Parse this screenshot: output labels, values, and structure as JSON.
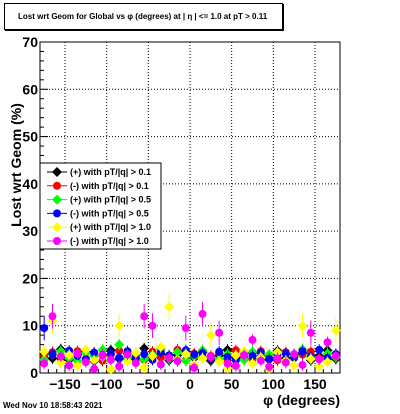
{
  "title": "Lost wrt Geom for Global vs φ (degrees) at |  η | <= 1.0 at pT > 0.11",
  "footer": {
    "timestamp": "Wed Nov 10 18:58:43 2021"
  },
  "chart_data": {
    "type": "scatter",
    "title": "Lost wrt Geom for Global vs φ (degrees) at |  η | <= 1.0 at pT > 0.11",
    "xlabel": "φ (degrees)",
    "ylabel": "Lost wrt Geom (%)",
    "xlim": [
      -180,
      180
    ],
    "ylim": [
      0,
      70
    ],
    "xticks": [
      -150,
      -100,
      -50,
      0,
      50,
      100,
      150
    ],
    "yticks": [
      0,
      10,
      20,
      30,
      40,
      50,
      60,
      70
    ],
    "grid": true,
    "legend_position": "middle-left",
    "series": [
      {
        "name": "(+) with pT/|q| > 0.1",
        "color": "#000000",
        "marker": "diamond",
        "x": [
          -175,
          -165,
          -155,
          -145,
          -135,
          -125,
          -115,
          -105,
          -95,
          -85,
          -75,
          -65,
          -55,
          -45,
          -35,
          -25,
          -15,
          -5,
          5,
          15,
          25,
          35,
          45,
          55,
          65,
          75,
          85,
          95,
          105,
          115,
          125,
          135,
          145,
          155,
          165,
          175
        ],
        "y": [
          4.2,
          3.1,
          5.0,
          2.8,
          3.9,
          4.5,
          2.5,
          3.6,
          4.8,
          3.0,
          4.1,
          2.9,
          5.2,
          3.4,
          4.0,
          2.7,
          3.8,
          4.6,
          3.2,
          4.4,
          2.6,
          3.7,
          4.9,
          3.3,
          2.9,
          4.3,
          3.5,
          2.8,
          4.7,
          3.1,
          3.9,
          4.2,
          2.7,
          3.6,
          4.8,
          3.0
        ]
      },
      {
        "name": "(-) with pT/|q| > 0.1",
        "color": "#ff0000",
        "marker": "circle",
        "x": [
          -175,
          -165,
          -155,
          -145,
          -135,
          -125,
          -115,
          -105,
          -95,
          -85,
          -75,
          -65,
          -55,
          -45,
          -35,
          -25,
          -15,
          -5,
          5,
          15,
          25,
          35,
          45,
          55,
          65,
          75,
          85,
          95,
          105,
          115,
          125,
          135,
          145,
          155,
          165,
          175
        ],
        "y": [
          3.5,
          4.4,
          2.9,
          3.8,
          4.6,
          3.0,
          4.2,
          2.6,
          3.9,
          4.7,
          3.2,
          4.0,
          2.8,
          4.5,
          3.3,
          3.7,
          4.9,
          2.7,
          4.1,
          3.4,
          3.6,
          4.3,
          2.9,
          4.8,
          3.5,
          3.0,
          4.6,
          3.8,
          2.7,
          4.4,
          3.2,
          3.9,
          4.5,
          3.1,
          2.8,
          4.0
        ]
      },
      {
        "name": "(+) with pT/|q| > 0.5",
        "color": "#00ff00",
        "marker": "diamond",
        "x": [
          -175,
          -165,
          -155,
          -145,
          -135,
          -125,
          -115,
          -105,
          -95,
          -85,
          -75,
          -65,
          -55,
          -45,
          -35,
          -25,
          -15,
          -5,
          5,
          15,
          25,
          35,
          45,
          55,
          65,
          75,
          85,
          95,
          105,
          115,
          125,
          135,
          145,
          155,
          165,
          175
        ],
        "y": [
          2.8,
          3.9,
          4.6,
          3.1,
          2.5,
          4.2,
          3.6,
          4.9,
          2.7,
          6.0,
          3.3,
          4.1,
          2.9,
          3.8,
          5.1,
          3.0,
          4.4,
          2.6,
          3.5,
          4.8,
          3.2,
          2.9,
          4.0,
          3.7,
          2.8,
          4.5,
          3.1,
          3.9,
          4.3,
          2.7,
          3.6,
          5.0,
          3.4,
          2.9,
          4.1,
          3.3
        ]
      },
      {
        "name": "(-) with pT/|q| > 0.5",
        "color": "#0000ff",
        "marker": "circle",
        "x": [
          -175,
          -165,
          -155,
          -145,
          -135,
          -125,
          -115,
          -105,
          -95,
          -85,
          -75,
          -65,
          -55,
          -45,
          -35,
          -25,
          -15,
          -5,
          5,
          15,
          25,
          35,
          45,
          55,
          65,
          75,
          85,
          95,
          105,
          115,
          125,
          135,
          145,
          155,
          165,
          175
        ],
        "y": [
          9.5,
          4.0,
          3.3,
          4.7,
          3.6,
          2.9,
          4.3,
          3.8,
          4.1,
          3.2,
          4.6,
          3.5,
          4.0,
          2.8,
          4.4,
          3.7,
          3.0,
          4.8,
          3.9,
          4.2,
          3.1,
          4.5,
          3.4,
          2.7,
          4.0,
          3.6,
          4.3,
          3.0,
          3.8,
          4.1,
          3.3,
          4.6,
          3.5,
          4.9,
          3.2,
          4.0
        ]
      },
      {
        "name": "(+) with pT/|q| > 1.0",
        "color": "#ffff00",
        "marker": "diamond",
        "x": [
          -175,
          -165,
          -155,
          -145,
          -135,
          -125,
          -115,
          -105,
          -95,
          -85,
          -75,
          -65,
          -55,
          -45,
          -35,
          -25,
          -15,
          -5,
          5,
          15,
          25,
          35,
          45,
          55,
          65,
          75,
          85,
          95,
          105,
          115,
          125,
          135,
          145,
          155,
          165,
          175
        ],
        "y": [
          4.5,
          11.0,
          2.2,
          3.8,
          1.5,
          4.9,
          2.7,
          3.4,
          0.8,
          10.0,
          2.5,
          4.2,
          1.2,
          3.6,
          5.5,
          14.0,
          2.9,
          4.0,
          1.8,
          3.1,
          8.0,
          2.4,
          1.0,
          3.7,
          4.6,
          2.0,
          3.3,
          0.9,
          4.4,
          2.6,
          1.6,
          10.0,
          3.0,
          1.4,
          2.3,
          9.0
        ]
      },
      {
        "name": "(-) with pT/|q| > 1.0",
        "color": "#ff00ff",
        "marker": "circle",
        "x": [
          -175,
          -165,
          -155,
          -145,
          -135,
          -125,
          -115,
          -105,
          -95,
          -85,
          -75,
          -65,
          -55,
          -45,
          -35,
          -25,
          -15,
          -5,
          5,
          15,
          25,
          35,
          45,
          55,
          65,
          75,
          85,
          95,
          105,
          115,
          125,
          135,
          145,
          155,
          165,
          175
        ],
        "y": [
          2.0,
          12.0,
          3.5,
          1.6,
          4.1,
          2.3,
          0.9,
          3.7,
          2.8,
          1.4,
          3.9,
          2.1,
          12.0,
          10.0,
          1.8,
          3.2,
          2.5,
          9.5,
          1.1,
          12.5,
          3.4,
          8.5,
          2.0,
          1.5,
          3.8,
          7.0,
          2.6,
          1.3,
          3.1,
          2.2,
          4.0,
          1.7,
          8.5,
          2.9,
          6.5,
          3.6
        ]
      }
    ]
  }
}
